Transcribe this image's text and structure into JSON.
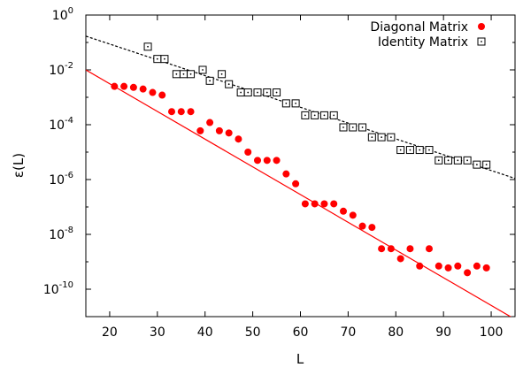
{
  "chart_data": {
    "type": "scatter",
    "xlabel": "L",
    "ylabel": "ε(L)",
    "xscale": "linear",
    "yscale": "log",
    "xlim": [
      15,
      105
    ],
    "ylim_exponents": [
      -11,
      0
    ],
    "x_ticks": [
      20,
      30,
      40,
      50,
      60,
      70,
      80,
      90,
      100
    ],
    "x_tick_labels": [
      "20",
      "30",
      "40",
      "50",
      "60",
      "70",
      "80",
      "90",
      "100"
    ],
    "y_ticks": [
      {
        "base": "10",
        "exp": "0"
      },
      {
        "base": "10",
        "exp": "-2"
      },
      {
        "base": "10",
        "exp": "-4"
      },
      {
        "base": "10",
        "exp": "-6"
      },
      {
        "base": "10",
        "exp": "-8"
      },
      {
        "base": "10",
        "exp": "-10"
      }
    ],
    "legend_position": "top-right",
    "grid": false,
    "series": [
      {
        "name": "Diagonal Matrix",
        "marker": "filled-circle",
        "color": "#ff0000",
        "points": [
          [
            21,
            0.0025
          ],
          [
            23,
            0.0025
          ],
          [
            25,
            0.0023
          ],
          [
            27,
            0.002
          ],
          [
            29,
            0.0015
          ],
          [
            31,
            0.0012
          ],
          [
            33,
            0.0003
          ],
          [
            35,
            0.0003
          ],
          [
            37,
            0.0003
          ],
          [
            39,
            6e-05
          ],
          [
            41,
            0.00012
          ],
          [
            43,
            6e-05
          ],
          [
            45,
            5e-05
          ],
          [
            47,
            3e-05
          ],
          [
            49,
            1e-05
          ],
          [
            51,
            5e-06
          ],
          [
            53,
            5e-06
          ],
          [
            55,
            5e-06
          ],
          [
            57,
            1.6e-06
          ],
          [
            59,
            7e-07
          ],
          [
            61,
            1.3e-07
          ],
          [
            63,
            1.3e-07
          ],
          [
            65,
            1.3e-07
          ],
          [
            67,
            1.3e-07
          ],
          [
            69,
            7e-08
          ],
          [
            71,
            5e-08
          ],
          [
            73,
            2e-08
          ],
          [
            75,
            1.8e-08
          ],
          [
            77,
            3e-09
          ],
          [
            79,
            3e-09
          ],
          [
            81,
            1.3e-09
          ],
          [
            83,
            3e-09
          ],
          [
            85,
            7e-10
          ],
          [
            87,
            3e-09
          ],
          [
            89,
            7e-10
          ],
          [
            91,
            6e-10
          ],
          [
            93,
            7e-10
          ],
          [
            95,
            4e-10
          ],
          [
            97,
            7e-10
          ],
          [
            99,
            6e-10
          ]
        ],
        "fit": {
          "x": [
            15,
            105
          ],
          "y": [
            0.01,
            8e-12
          ],
          "color": "#ff0000",
          "style": "solid"
        }
      },
      {
        "name": "Identity Matrix",
        "marker": "square-with-dot",
        "color": "#000000",
        "points": [
          [
            28,
            0.07
          ],
          [
            30,
            0.025
          ],
          [
            31.5,
            0.025
          ],
          [
            34,
            0.007
          ],
          [
            35.5,
            0.007
          ],
          [
            37,
            0.007
          ],
          [
            39.5,
            0.01
          ],
          [
            41,
            0.004
          ],
          [
            43.5,
            0.007
          ],
          [
            45,
            0.003
          ],
          [
            47.5,
            0.0015
          ],
          [
            49,
            0.0015
          ],
          [
            51,
            0.0015
          ],
          [
            53,
            0.0015
          ],
          [
            55,
            0.0015
          ],
          [
            57,
            0.0006
          ],
          [
            59,
            0.0006
          ],
          [
            61,
            0.00022
          ],
          [
            63,
            0.00022
          ],
          [
            65,
            0.00022
          ],
          [
            67,
            0.00022
          ],
          [
            69,
            8e-05
          ],
          [
            71,
            8e-05
          ],
          [
            73,
            8e-05
          ],
          [
            75,
            3.5e-05
          ],
          [
            77,
            3.5e-05
          ],
          [
            79,
            3.5e-05
          ],
          [
            81,
            1.2e-05
          ],
          [
            83,
            1.2e-05
          ],
          [
            85,
            1.2e-05
          ],
          [
            87,
            1.2e-05
          ],
          [
            89,
            5e-06
          ],
          [
            91,
            5e-06
          ],
          [
            93,
            5e-06
          ],
          [
            95,
            5e-06
          ],
          [
            97,
            3.5e-06
          ],
          [
            99,
            3.5e-06
          ]
        ],
        "fit": {
          "x": [
            15,
            105
          ],
          "y": [
            0.17,
            1.1e-06
          ],
          "color": "#000000",
          "style": "dashed"
        }
      }
    ]
  }
}
